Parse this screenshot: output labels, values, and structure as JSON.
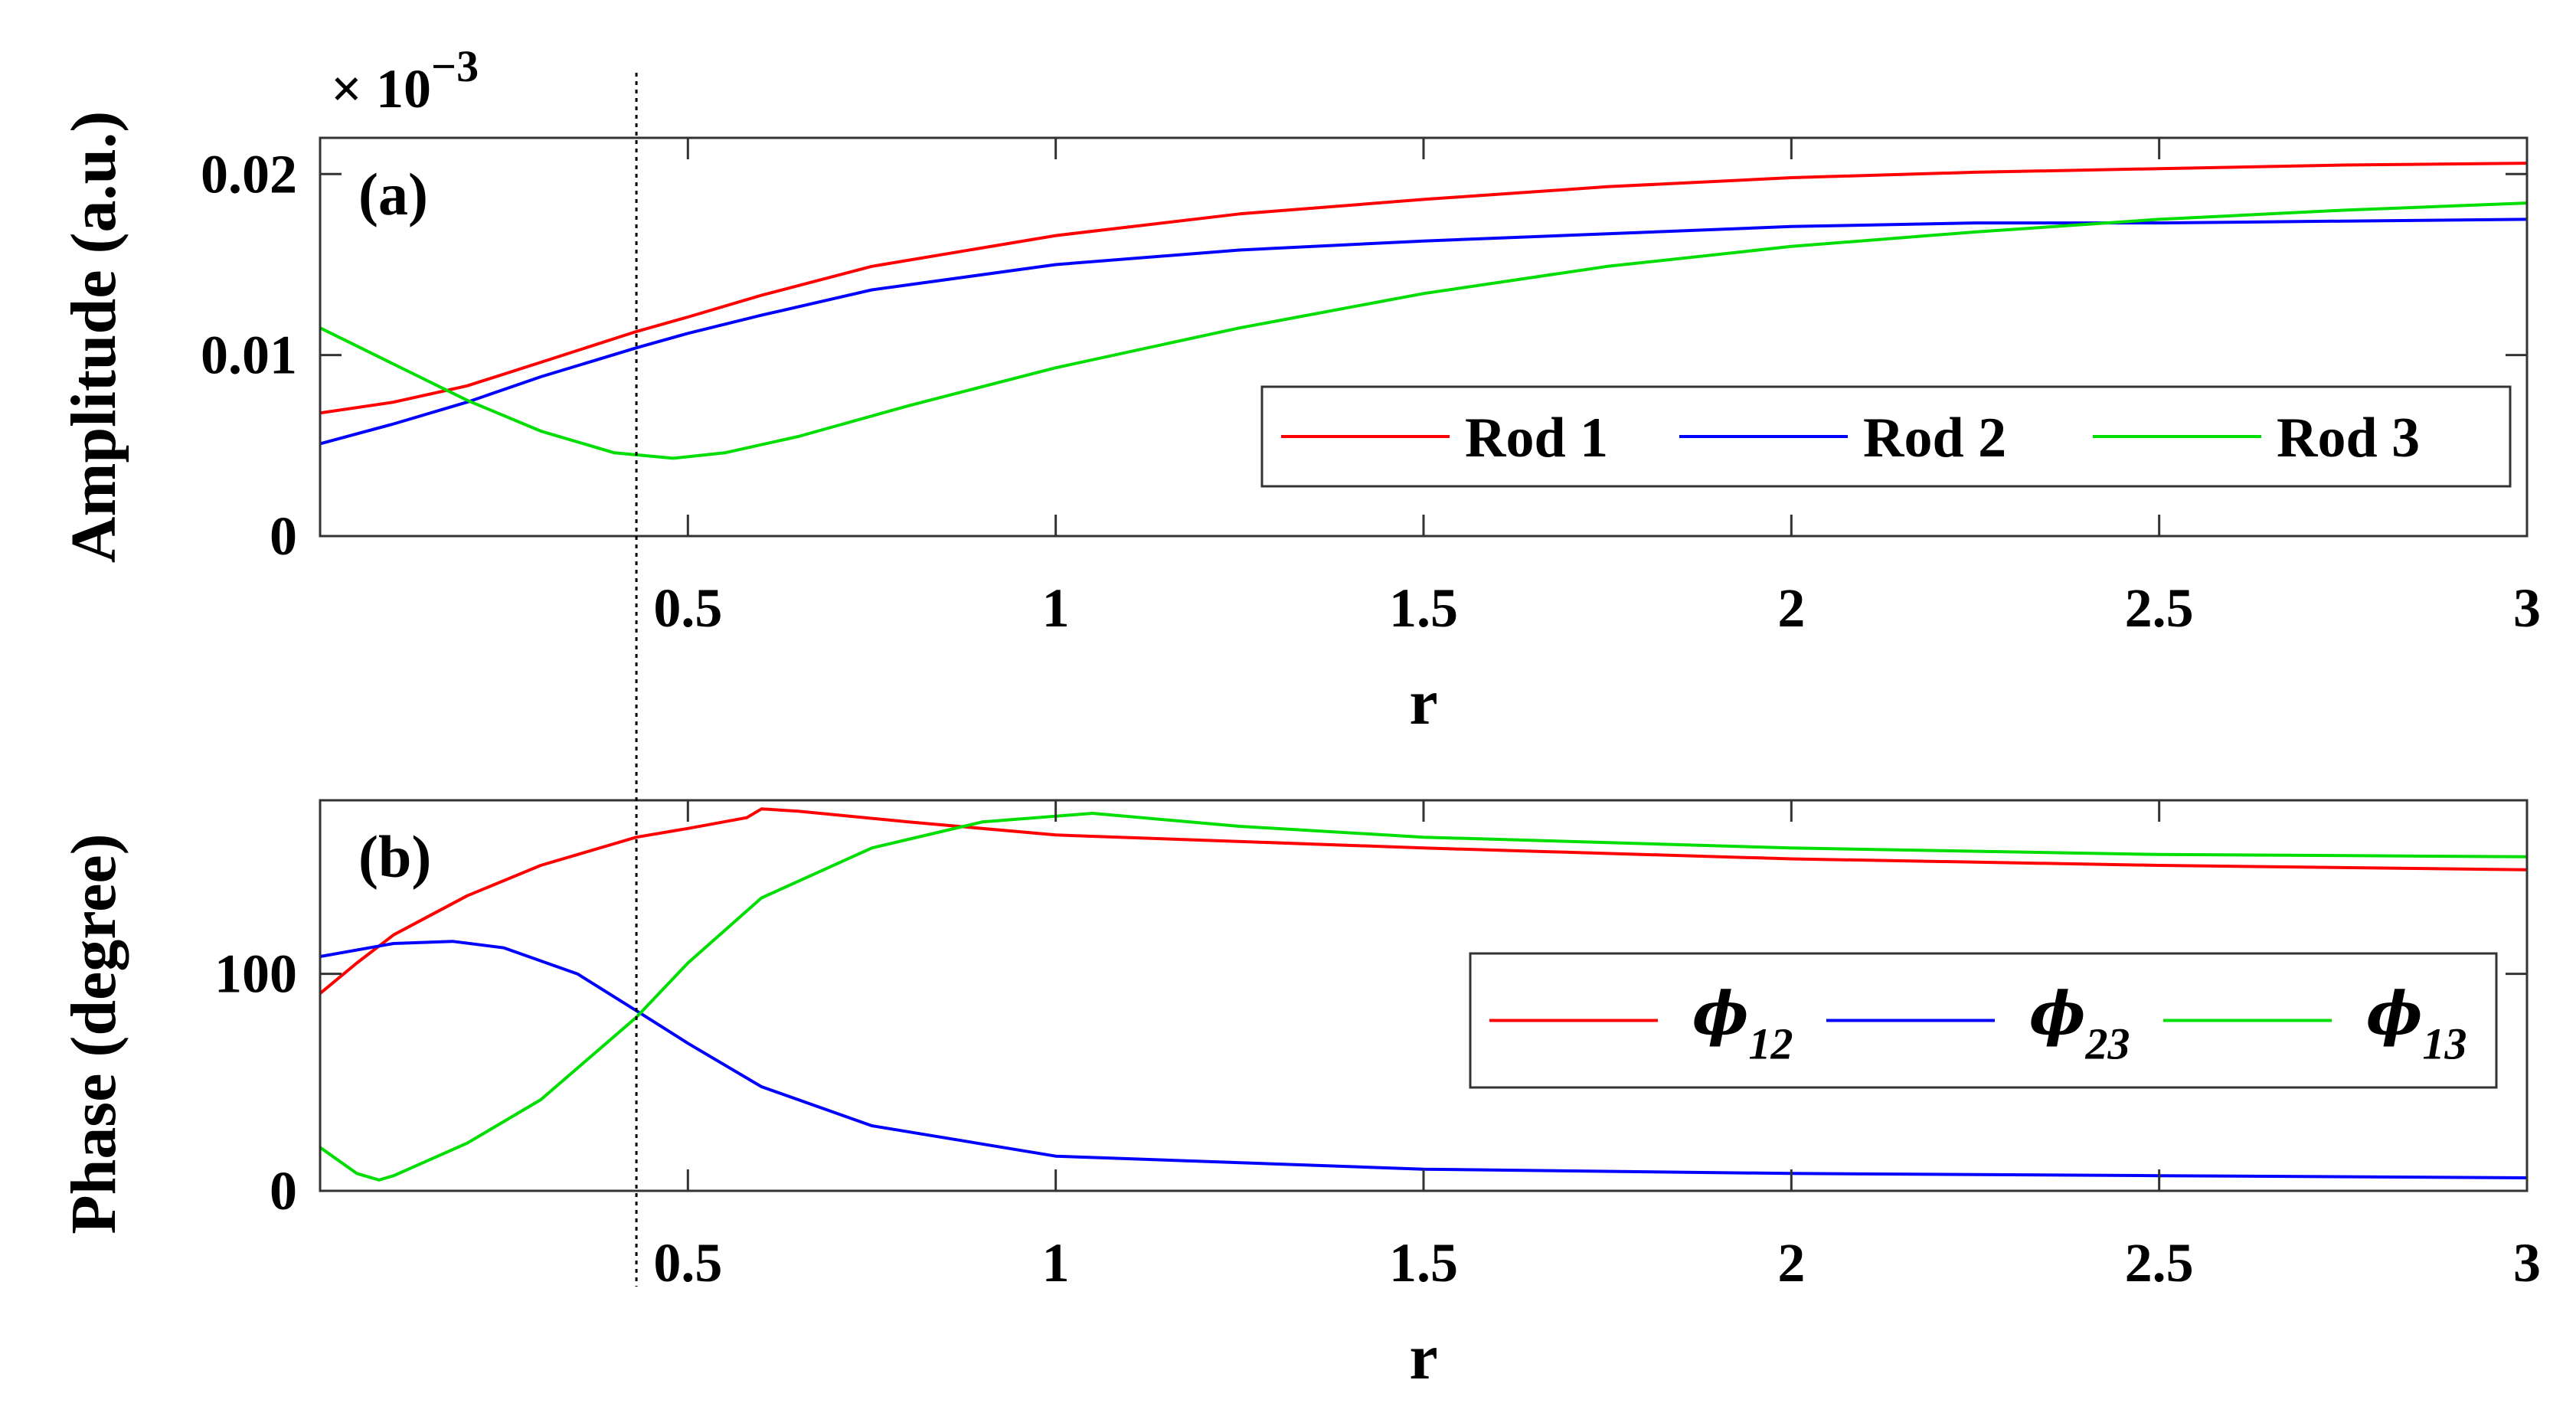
{
  "chart_data": [
    {
      "type": "line",
      "panel_label": "(a)",
      "xlabel": "r",
      "ylabel": "Amplitude (a.u.)",
      "exponent_label": "× 10",
      "exponent_power": "−3",
      "xlim": [
        0.0,
        3.0
      ],
      "ylim": [
        0,
        0.022
      ],
      "xticks": [
        0.5,
        1,
        1.5,
        2,
        2.5,
        3
      ],
      "xtick_labels": [
        "0.5",
        "1",
        "1.5",
        "2",
        "2.5",
        "3"
      ],
      "yticks": [
        0,
        0.01,
        0.02
      ],
      "ytick_labels": [
        "0",
        "0.01",
        "0.02"
      ],
      "legend_position": "right",
      "series": [
        {
          "name": "Rod 1",
          "color": "#ff0000",
          "x": [
            0.0,
            0.1,
            0.2,
            0.3,
            0.43,
            0.5,
            0.6,
            0.75,
            1.0,
            1.25,
            1.5,
            1.75,
            2.0,
            2.25,
            2.5,
            2.75,
            3.0
          ],
          "y": [
            0.0068,
            0.0074,
            0.0083,
            0.0096,
            0.0113,
            0.0121,
            0.0133,
            0.0149,
            0.0166,
            0.0178,
            0.0186,
            0.0193,
            0.0198,
            0.0201,
            0.0203,
            0.0205,
            0.0206
          ]
        },
        {
          "name": "Rod 2",
          "color": "#0000ff",
          "x": [
            0.0,
            0.1,
            0.2,
            0.3,
            0.43,
            0.5,
            0.6,
            0.75,
            1.0,
            1.25,
            1.5,
            1.75,
            2.0,
            2.25,
            2.5,
            2.75,
            3.0
          ],
          "y": [
            0.0051,
            0.0062,
            0.0074,
            0.0088,
            0.0104,
            0.0112,
            0.0122,
            0.0136,
            0.015,
            0.0158,
            0.0163,
            0.0167,
            0.0171,
            0.0173,
            0.0173,
            0.0174,
            0.0175
          ]
        },
        {
          "name": "Rod 3",
          "color": "#00dd00",
          "x": [
            0.0,
            0.1,
            0.2,
            0.3,
            0.4,
            0.48,
            0.55,
            0.65,
            0.8,
            1.0,
            1.25,
            1.5,
            1.75,
            2.0,
            2.25,
            2.5,
            2.75,
            3.0
          ],
          "y": [
            0.0115,
            0.0095,
            0.0075,
            0.0058,
            0.0046,
            0.0043,
            0.0046,
            0.0055,
            0.0072,
            0.0093,
            0.0115,
            0.0134,
            0.0149,
            0.016,
            0.0168,
            0.0175,
            0.018,
            0.0184
          ]
        }
      ]
    },
    {
      "type": "line",
      "panel_label": "(b)",
      "xlabel": "r",
      "ylabel": "Phase (degree)",
      "xlim": [
        0.0,
        3.0
      ],
      "ylim": [
        0,
        180
      ],
      "xticks": [
        0.5,
        1,
        1.5,
        2,
        2.5,
        3
      ],
      "xtick_labels": [
        "0.5",
        "1",
        "1.5",
        "2",
        "2.5",
        "3"
      ],
      "yticks": [
        0,
        100
      ],
      "ytick_labels": [
        "0",
        "100"
      ],
      "legend_position": "right",
      "series": [
        {
          "name": "φ12",
          "symbol": "ϕ",
          "subscript": "12",
          "color": "#ff0000",
          "x": [
            0.0,
            0.05,
            0.1,
            0.2,
            0.3,
            0.43,
            0.5,
            0.58,
            0.6,
            0.65,
            0.8,
            1.0,
            1.5,
            2.0,
            2.5,
            3.0
          ],
          "y": [
            91,
            105,
            118,
            136,
            150,
            163,
            167,
            172,
            176,
            175,
            170,
            164,
            158,
            153,
            150,
            148
          ]
        },
        {
          "name": "φ23",
          "symbol": "ϕ",
          "subscript": "23",
          "color": "#0000ff",
          "x": [
            0.0,
            0.1,
            0.18,
            0.25,
            0.35,
            0.43,
            0.5,
            0.6,
            0.75,
            1.0,
            1.5,
            2.0,
            2.5,
            3.0
          ],
          "y": [
            108,
            114,
            115,
            112,
            100,
            83,
            68,
            48,
            30,
            16,
            10,
            8,
            7,
            6
          ]
        },
        {
          "name": "φ13",
          "symbol": "ϕ",
          "subscript": "13",
          "color": "#00dd00",
          "x": [
            0.0,
            0.05,
            0.08,
            0.1,
            0.2,
            0.3,
            0.43,
            0.5,
            0.6,
            0.75,
            0.9,
            1.05,
            1.25,
            1.5,
            2.0,
            2.5,
            3.0
          ],
          "y": [
            20,
            8,
            5,
            7,
            22,
            42,
            80,
            105,
            135,
            158,
            170,
            174,
            168,
            163,
            158,
            155,
            154
          ]
        }
      ]
    }
  ],
  "marker_line": {
    "x": 0.43,
    "style": "dotted"
  }
}
